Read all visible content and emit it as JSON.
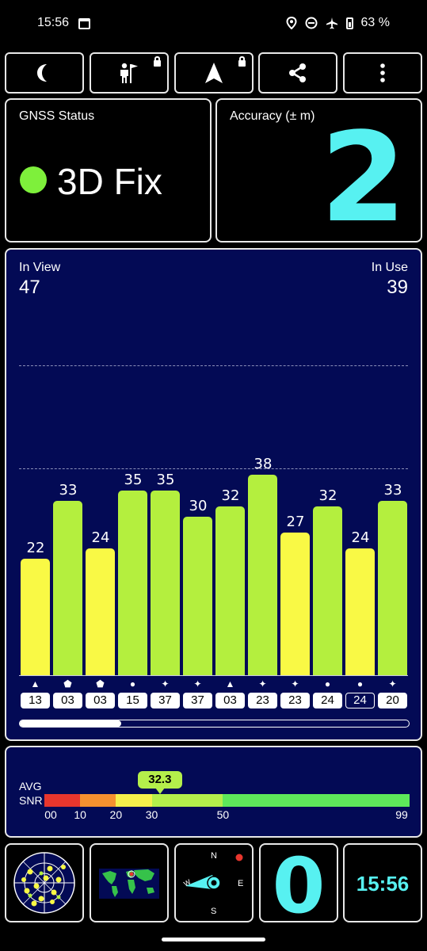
{
  "status_bar": {
    "time": "15:56",
    "battery": "63 %",
    "icons": [
      "calendar-icon",
      "location-icon",
      "dnd-icon",
      "airplane-icon",
      "battery-icon"
    ]
  },
  "toolbar": {
    "buttons": [
      {
        "icon": "moon-icon",
        "locked": false
      },
      {
        "icon": "flag-person-icon",
        "locked": true
      },
      {
        "icon": "navigation-arrow-icon",
        "locked": true
      },
      {
        "icon": "share-icon",
        "locked": false
      },
      {
        "icon": "more-vert-icon",
        "locked": false
      }
    ]
  },
  "gnss": {
    "label": "GNSS Status",
    "fix": "3D Fix",
    "fix_color": "#7ef03b"
  },
  "accuracy": {
    "label": "Accuracy (± m)",
    "value": "2",
    "color": "#57f1f1"
  },
  "satellites": {
    "in_view_label": "In View",
    "in_view": "47",
    "in_use_label": "In Use",
    "in_use": "39",
    "scroll_position": 0.26
  },
  "chart_data": {
    "type": "bar",
    "ylim": [
      0,
      60
    ],
    "grid": true,
    "categories": [
      "13",
      "03",
      "03",
      "15",
      "37",
      "37",
      "03",
      "23",
      "23",
      "24",
      "24",
      "20"
    ],
    "values": [
      22,
      33,
      24,
      35,
      35,
      30,
      32,
      38,
      27,
      32,
      24,
      33
    ],
    "constellations": [
      "triangle",
      "pentagon",
      "pentagon",
      "circle",
      "star",
      "star",
      "triangle",
      "star",
      "star",
      "circle",
      "circle",
      "star"
    ],
    "in_use": [
      true,
      true,
      true,
      true,
      true,
      true,
      true,
      true,
      true,
      true,
      false,
      true
    ],
    "colors": {
      "low": "#f9f945",
      "high": "#b4ef3e"
    }
  },
  "snr": {
    "label_line1": "AVG",
    "label_line2": "SNR",
    "avg": "32.3",
    "avg_value": 32.3,
    "ticks": [
      "00",
      "10",
      "20",
      "30",
      "50",
      "99"
    ],
    "segments": [
      {
        "from": 0,
        "to": 10,
        "color": "#e8362d"
      },
      {
        "from": 10,
        "to": 20,
        "color": "#f6912f"
      },
      {
        "from": 20,
        "to": 30,
        "color": "#f6f04b"
      },
      {
        "from": 30,
        "to": 50,
        "color": "#b4ef4b"
      },
      {
        "from": 50,
        "to": 99,
        "color": "#5ee85a"
      }
    ]
  },
  "bottom_tiles": {
    "radar_icon": "sky-radar-icon",
    "map_icon": "world-map-icon",
    "compass": {
      "n": "N",
      "e": "E",
      "s": "S",
      "w": "W"
    },
    "speed": "0",
    "clock": "15:56"
  }
}
